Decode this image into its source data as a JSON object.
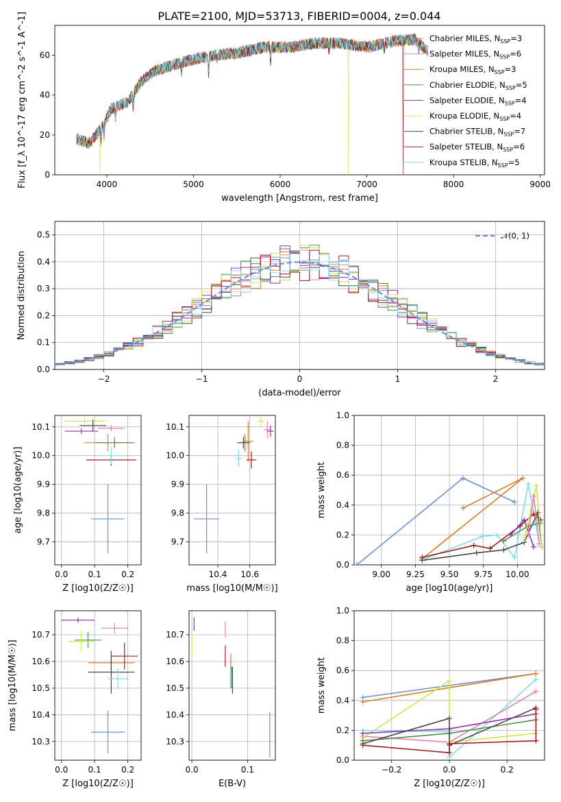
{
  "title": "PLATE=2100, MJD=53713, FIBERID=0004, z=0.044",
  "models": [
    {
      "name": "Chabrier MILES",
      "color": "#6a8fd8",
      "nssp": "3"
    },
    {
      "name": "Salpeter MILES",
      "color": "#e57fb3",
      "nssp": "6"
    },
    {
      "name": "Kroupa MILES",
      "color": "#de7a1f",
      "nssp": "3"
    },
    {
      "name": "Chabrier ELODIE",
      "color": "#4e8a4a",
      "nssp": "5"
    },
    {
      "name": "Salpeter ELODIE",
      "color": "#9a2bb0",
      "nssp": "4"
    },
    {
      "name": "Kroupa ELODIE",
      "color": "#c8e84a",
      "nssp": "4"
    },
    {
      "name": "Chabrier STELIB",
      "color": "#444444",
      "nssp": "7"
    },
    {
      "name": "Salpeter STELIB",
      "color": "#a01818",
      "nssp": "6"
    },
    {
      "name": "Kroupa STELIB",
      "color": "#7fdde8",
      "nssp": "5"
    }
  ],
  "legend_nssp_prefix": "N",
  "legend_nssp_sub": "SSP",
  "chart_data": [
    {
      "type": "line",
      "id": "spectrum",
      "xlabel": "wavelength [Angstrom, rest frame]",
      "ylabel": "Flux [f_λ 10^-17 erg cm^-2 s^-1 A^-1]",
      "xlim": [
        3400,
        9050
      ],
      "ylim": [
        0,
        75
      ],
      "xticks": [
        4000,
        5000,
        6000,
        7000,
        8000,
        9000
      ],
      "yticks": [
        0,
        20,
        40,
        60
      ],
      "continuum_x": [
        3650,
        3800,
        3950,
        4050,
        4250,
        4400,
        4550,
        4750,
        5000,
        5250,
        5500,
        5800,
        6100,
        6400,
        6700,
        7000,
        7300,
        7550,
        7700
      ],
      "continuum_y": [
        18,
        16,
        24,
        33,
        37,
        47,
        52,
        55,
        58,
        60,
        61,
        64,
        64,
        66,
        66,
        64,
        67,
        68,
        62
      ],
      "dropouts": [
        {
          "model": "Kroupa ELODIE",
          "x": 3920
        },
        {
          "model": "Kroupa ELODIE",
          "x": 6790
        },
        {
          "model": "Salpeter STELIB",
          "x": 7420
        }
      ]
    },
    {
      "type": "step",
      "id": "residual-histogram",
      "xlabel": "(data-model)/error",
      "ylabel": "Normed distribution",
      "xlim": [
        -2.5,
        2.5
      ],
      "ylim": [
        0,
        0.55
      ],
      "xticks": [
        -2,
        -1,
        0,
        1,
        2
      ],
      "yticks": [
        0.0,
        0.1,
        0.2,
        0.3,
        0.4,
        0.5
      ],
      "bin_width": 0.1,
      "reference_curve": {
        "name": "𝒩(0, 1)",
        "color": "#6a8fd8",
        "dash": true
      },
      "grid": true,
      "legend": "top-right"
    },
    {
      "type": "scatter",
      "id": "age-vs-metallicity",
      "xlabel": "Z [log10(Z/Z☉)]",
      "ylabel": "age [log10(age/yr)]",
      "xlim": [
        -0.02,
        0.24
      ],
      "ylim": [
        9.62,
        10.14
      ],
      "xticks": [
        0.0,
        0.1,
        0.2
      ],
      "yticks": [
        9.7,
        9.8,
        9.9,
        10.0,
        10.1
      ],
      "points": [
        {
          "model": "Chabrier MILES",
          "x": 0.14,
          "xerr": 0.05,
          "y": 9.78,
          "yerr": 0.12
        },
        {
          "model": "Salpeter MILES",
          "x": 0.15,
          "xerr": 0.04,
          "y": 10.095,
          "yerr": 0.01
        },
        {
          "model": "Kroupa MILES",
          "x": 0.14,
          "xerr": 0.07,
          "y": 10.045,
          "yerr": 0.03
        },
        {
          "model": "Chabrier ELODIE",
          "x": 0.16,
          "xerr": 0.06,
          "y": 10.045,
          "yerr": 0.02
        },
        {
          "model": "Salpeter ELODIE",
          "x": 0.06,
          "xerr": 0.05,
          "y": 10.085,
          "yerr": 0.01
        },
        {
          "model": "Kroupa ELODIE",
          "x": 0.07,
          "xerr": 0.06,
          "y": 10.12,
          "yerr": 0.01
        },
        {
          "model": "Chabrier STELIB",
          "x": 0.095,
          "xerr": 0.04,
          "y": 10.105,
          "yerr": 0.02
        },
        {
          "model": "Salpeter STELIB",
          "x": 0.15,
          "xerr": 0.075,
          "y": 9.985,
          "yerr": 0.02
        },
        {
          "model": "Kroupa STELIB",
          "x": 0.15,
          "xerr": 0.04,
          "y": 10.0,
          "yerr": 0.03
        }
      ]
    },
    {
      "type": "scatter",
      "id": "age-vs-mass",
      "xlabel": "mass [log10(M/M☉)]",
      "ylabel": "",
      "xlim": [
        10.22,
        10.76
      ],
      "ylim": [
        9.62,
        10.14
      ],
      "xticks": [
        10.4,
        10.6
      ],
      "yticks": [
        9.7,
        9.8,
        9.9,
        10.0,
        10.1
      ],
      "points": [
        {
          "model": "Chabrier MILES",
          "x": 10.33,
          "xerr": 0.08,
          "y": 9.78,
          "yerr": 0.12
        },
        {
          "model": "Salpeter MILES",
          "x": 10.71,
          "xerr": 0.02,
          "y": 10.09,
          "yerr": 0.03
        },
        {
          "model": "Kroupa MILES",
          "x": 10.59,
          "xerr": 0.03,
          "y": 10.05,
          "yerr": 0.07
        },
        {
          "model": "Chabrier ELODIE",
          "x": 10.57,
          "xerr": 0.03,
          "y": 10.045,
          "yerr": 0.03
        },
        {
          "model": "Salpeter ELODIE",
          "x": 10.73,
          "xerr": 0.02,
          "y": 10.085,
          "yerr": 0.02
        },
        {
          "model": "Kroupa ELODIE",
          "x": 10.67,
          "xerr": 0.02,
          "y": 10.12,
          "yerr": 0.02
        },
        {
          "model": "Chabrier STELIB",
          "x": 10.56,
          "xerr": 0.04,
          "y": 10.045,
          "yerr": 0.02
        },
        {
          "model": "Salpeter STELIB",
          "x": 10.61,
          "xerr": 0.03,
          "y": 9.985,
          "yerr": 0.03
        },
        {
          "model": "Kroupa STELIB",
          "x": 10.53,
          "xerr": 0.02,
          "y": 9.99,
          "yerr": 0.03
        }
      ]
    },
    {
      "type": "line",
      "id": "mass-weight-vs-age",
      "xlabel": "age [log10(age/yr)]",
      "ylabel": "mass weight",
      "xlim": [
        8.8,
        10.2
      ],
      "ylim": [
        0,
        1.0
      ],
      "xticks": [
        9.0,
        9.25,
        9.5,
        9.75,
        10.0
      ],
      "yticks": [
        0.0,
        0.2,
        0.4,
        0.6,
        0.8,
        1.0
      ],
      "series": [
        {
          "model": "Chabrier MILES",
          "x": [
            8.82,
            9.6,
            9.98
          ],
          "y": [
            0.0,
            0.58,
            0.42
          ]
        },
        {
          "model": "Kroupa MILES",
          "x": [
            9.3,
            10.04,
            9.6
          ],
          "y": [
            0.04,
            0.58,
            0.38
          ]
        },
        {
          "model": "Kroupa STELIB",
          "x": [
            9.32,
            9.74,
            9.85,
            9.98,
            10.08,
            10.15
          ],
          "y": [
            0.04,
            0.19,
            0.2,
            0.05,
            0.54,
            0.2
          ]
        },
        {
          "model": "Salpeter STELIB",
          "x": [
            9.3,
            9.68,
            9.8,
            10.02,
            10.12,
            10.17
          ],
          "y": [
            0.05,
            0.13,
            0.11,
            0.26,
            0.34,
            0.3
          ]
        },
        {
          "model": "Chabrier STELIB",
          "x": [
            9.3,
            9.7,
            9.9,
            10.05,
            10.15,
            10.18
          ],
          "y": [
            0.03,
            0.08,
            0.1,
            0.15,
            0.35,
            0.12
          ]
        },
        {
          "model": "Salpeter ELODIE",
          "x": [
            9.95,
            10.05,
            10.12
          ],
          "y": [
            0.2,
            0.3,
            0.12
          ]
        },
        {
          "model": "Chabrier ELODIE",
          "x": [
            9.9,
            10.08,
            10.17
          ],
          "y": [
            0.16,
            0.26,
            0.28
          ]
        },
        {
          "model": "Kroupa ELODIE",
          "x": [
            10.05,
            10.14,
            10.18
          ],
          "y": [
            0.17,
            0.53,
            0.12
          ]
        },
        {
          "model": "Salpeter MILES",
          "x": [
            10.08,
            10.12,
            10.16
          ],
          "y": [
            0.2,
            0.46,
            0.14
          ]
        }
      ]
    },
    {
      "type": "scatter",
      "id": "mass-vs-metallicity",
      "xlabel": "Z [log10(Z/Z☉)]",
      "ylabel": "mass [log10(M/M☉)]",
      "xlim": [
        -0.02,
        0.24
      ],
      "ylim": [
        10.23,
        10.79
      ],
      "xticks": [
        0.0,
        0.1,
        0.2
      ],
      "yticks": [
        10.3,
        10.4,
        10.5,
        10.6,
        10.7
      ],
      "points": [
        {
          "model": "Chabrier MILES",
          "x": 0.14,
          "xerr": 0.05,
          "y": 10.335,
          "yerr": 0.08
        },
        {
          "model": "Salpeter MILES",
          "x": 0.16,
          "xerr": 0.04,
          "y": 10.725,
          "yerr": 0.02
        },
        {
          "model": "Kroupa MILES",
          "x": 0.15,
          "xerr": 0.07,
          "y": 10.595,
          "yerr": 0.02
        },
        {
          "model": "Chabrier ELODIE",
          "x": 0.08,
          "xerr": 0.04,
          "y": 10.68,
          "yerr": 0.03
        },
        {
          "model": "Salpeter ELODIE",
          "x": 0.05,
          "xerr": 0.05,
          "y": 10.755,
          "yerr": 0.01
        },
        {
          "model": "Kroupa ELODIE",
          "x": 0.06,
          "xerr": 0.04,
          "y": 10.675,
          "yerr": 0.04
        },
        {
          "model": "Chabrier STELIB",
          "x": 0.15,
          "xerr": 0.07,
          "y": 10.56,
          "yerr": 0.08
        },
        {
          "model": "Salpeter STELIB",
          "x": 0.19,
          "xerr": 0.04,
          "y": 10.62,
          "yerr": 0.05
        },
        {
          "model": "Kroupa STELIB",
          "x": 0.17,
          "xerr": 0.03,
          "y": 10.535,
          "yerr": 0.04
        }
      ]
    },
    {
      "type": "scatter",
      "id": "mass-vs-extinction",
      "xlabel": "E(B-V)",
      "ylabel": "",
      "xlim": [
        -0.005,
        0.15
      ],
      "ylim": [
        10.23,
        10.79
      ],
      "xticks": [
        0.0,
        0.1
      ],
      "yticks": [
        10.3,
        10.4,
        10.5,
        10.6,
        10.7
      ],
      "points": [
        {
          "model": "Chabrier MILES",
          "x": 0.14,
          "xerr": 0.0,
          "y": 10.325,
          "yerr": 0.085
        },
        {
          "model": "Salpeter MILES",
          "x": 0.06,
          "xerr": 0.0,
          "y": 10.72,
          "yerr": 0.03
        },
        {
          "model": "Kroupa MILES",
          "x": 0.07,
          "xerr": 0.0,
          "y": 10.6,
          "yerr": 0.03
        },
        {
          "model": "Chabrier ELODIE",
          "x": 0.071,
          "xerr": 0.0,
          "y": 10.54,
          "yerr": 0.04
        },
        {
          "model": "Salpeter ELODIE",
          "x": 0.004,
          "xerr": 0.0,
          "y": 10.74,
          "yerr": 0.025
        },
        {
          "model": "Kroupa ELODIE",
          "x": 0.0,
          "xerr": 0.0,
          "y": 10.66,
          "yerr": 0.04
        },
        {
          "model": "Chabrier STELIB",
          "x": 0.073,
          "xerr": 0.0,
          "y": 10.53,
          "yerr": 0.05
        },
        {
          "model": "Salpeter STELIB",
          "x": 0.06,
          "xerr": 0.0,
          "y": 10.62,
          "yerr": 0.04
        },
        {
          "model": "Kroupa STELIB",
          "x": 0.069,
          "xerr": 0.0,
          "y": 10.54,
          "yerr": 0.04
        }
      ]
    },
    {
      "type": "line",
      "id": "mass-weight-vs-metallicity",
      "xlabel": "Z [log10(Z/Z☉)]",
      "ylabel": "mass weight",
      "xlim": [
        -0.33,
        0.33
      ],
      "ylim": [
        0,
        1.0
      ],
      "xticks": [
        -0.2,
        0.0,
        0.2
      ],
      "yticks": [
        0.0,
        0.2,
        0.4,
        0.6,
        0.8,
        1.0
      ],
      "series": [
        {
          "model": "Chabrier MILES",
          "x": [
            -0.3,
            0.3
          ],
          "y": [
            0.42,
            0.58
          ]
        },
        {
          "model": "Kroupa MILES",
          "x": [
            -0.3,
            0.3
          ],
          "y": [
            0.39,
            0.58
          ]
        },
        {
          "model": "Kroupa STELIB",
          "x": [
            -0.3,
            0.0,
            0.0,
            0.3
          ],
          "y": [
            0.2,
            0.19,
            0.02,
            0.54
          ]
        },
        {
          "model": "Salpeter MILES",
          "x": [
            -0.3,
            0.0,
            0.3
          ],
          "y": [
            0.16,
            0.12,
            0.46
          ]
        },
        {
          "model": "Kroupa ELODIE",
          "x": [
            -0.3,
            0.0,
            0.0,
            0.3
          ],
          "y": [
            0.15,
            0.53,
            0.12,
            0.18
          ]
        },
        {
          "model": "Salpeter ELODIE",
          "x": [
            -0.3,
            0.0,
            0.3
          ],
          "y": [
            0.18,
            0.21,
            0.31
          ]
        },
        {
          "model": "Chabrier ELODIE",
          "x": [
            -0.3,
            0.0,
            0.3
          ],
          "y": [
            0.13,
            0.18,
            0.27
          ]
        },
        {
          "model": "Chabrier STELIB",
          "x": [
            -0.3,
            0.0,
            0.0,
            0.3
          ],
          "y": [
            0.11,
            0.28,
            0.1,
            0.35
          ]
        },
        {
          "model": "Salpeter STELIB",
          "x": [
            -0.3,
            0.0,
            0.0,
            0.3,
            0.3
          ],
          "y": [
            0.1,
            0.05,
            0.11,
            0.13,
            0.34
          ]
        }
      ]
    }
  ]
}
